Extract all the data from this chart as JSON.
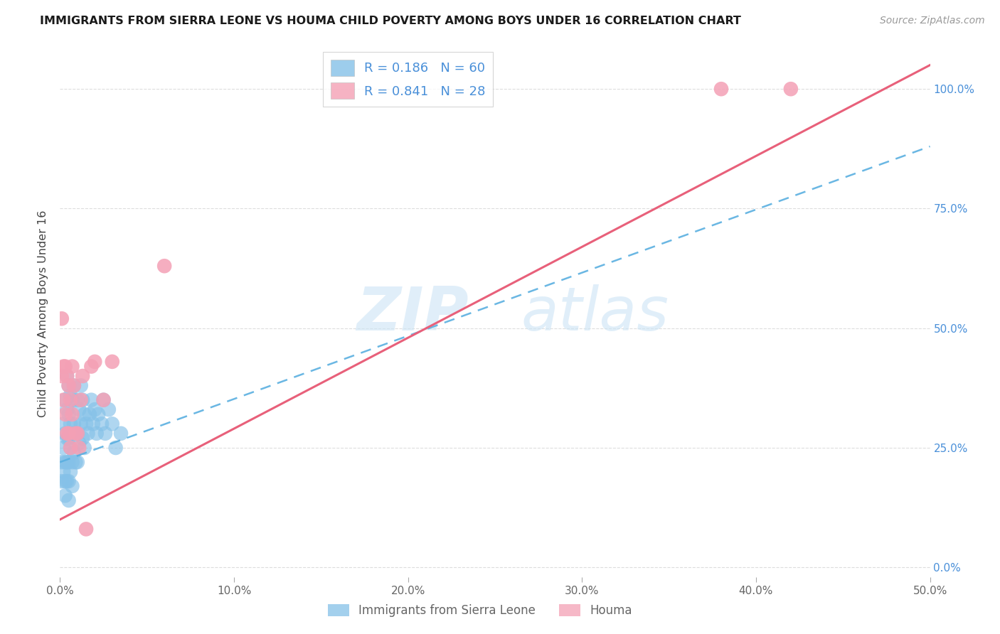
{
  "title": "IMMIGRANTS FROM SIERRA LEONE VS HOUMA CHILD POVERTY AMONG BOYS UNDER 16 CORRELATION CHART",
  "source": "Source: ZipAtlas.com",
  "ylabel": "Child Poverty Among Boys Under 16",
  "xlim": [
    0,
    0.5
  ],
  "ylim": [
    -0.02,
    1.08
  ],
  "xticks": [
    0.0,
    0.1,
    0.2,
    0.3,
    0.4,
    0.5
  ],
  "yticks": [
    0.0,
    0.25,
    0.5,
    0.75,
    1.0
  ],
  "xticklabels": [
    "0.0%",
    "10.0%",
    "20.0%",
    "30.0%",
    "40.0%",
    "50.0%"
  ],
  "yticklabels_right": [
    "0.0%",
    "25.0%",
    "50.0%",
    "75.0%",
    "100.0%"
  ],
  "legend_r1": "R = 0.186",
  "legend_n1": "N = 60",
  "legend_r2": "R = 0.841",
  "legend_n2": "N = 28",
  "color_blue": "#85c1e8",
  "color_pink": "#f4a0b5",
  "color_blue_line": "#5aafe0",
  "color_pink_line": "#e8607a",
  "color_blue_text": "#4a90d9",
  "watermark_zip": "ZIP",
  "watermark_atlas": "atlas",
  "blue_line_x0": 0.0,
  "blue_line_y0": 0.22,
  "blue_line_x1": 0.5,
  "blue_line_y1": 0.88,
  "pink_line_x0": 0.0,
  "pink_line_y0": 0.1,
  "pink_line_x1": 0.5,
  "pink_line_y1": 1.05,
  "sierra_leone_x": [
    0.001,
    0.001,
    0.002,
    0.002,
    0.002,
    0.003,
    0.003,
    0.003,
    0.003,
    0.003,
    0.004,
    0.004,
    0.004,
    0.004,
    0.004,
    0.005,
    0.005,
    0.005,
    0.005,
    0.005,
    0.005,
    0.006,
    0.006,
    0.006,
    0.006,
    0.007,
    0.007,
    0.007,
    0.007,
    0.008,
    0.008,
    0.008,
    0.009,
    0.009,
    0.01,
    0.01,
    0.01,
    0.011,
    0.011,
    0.012,
    0.012,
    0.013,
    0.013,
    0.014,
    0.014,
    0.015,
    0.016,
    0.017,
    0.018,
    0.019,
    0.02,
    0.021,
    0.022,
    0.024,
    0.025,
    0.026,
    0.028,
    0.03,
    0.032,
    0.035
  ],
  "sierra_leone_y": [
    0.22,
    0.18,
    0.3,
    0.25,
    0.2,
    0.35,
    0.28,
    0.22,
    0.18,
    0.15,
    0.4,
    0.33,
    0.27,
    0.22,
    0.18,
    0.38,
    0.32,
    0.27,
    0.22,
    0.18,
    0.14,
    0.36,
    0.3,
    0.25,
    0.2,
    0.35,
    0.28,
    0.22,
    0.17,
    0.38,
    0.3,
    0.24,
    0.28,
    0.22,
    0.35,
    0.28,
    0.22,
    0.33,
    0.26,
    0.38,
    0.3,
    0.35,
    0.27,
    0.32,
    0.25,
    0.3,
    0.28,
    0.32,
    0.35,
    0.3,
    0.33,
    0.28,
    0.32,
    0.3,
    0.35,
    0.28,
    0.33,
    0.3,
    0.25,
    0.28
  ],
  "houma_x": [
    0.001,
    0.001,
    0.002,
    0.002,
    0.003,
    0.003,
    0.004,
    0.004,
    0.005,
    0.005,
    0.006,
    0.006,
    0.007,
    0.007,
    0.008,
    0.009,
    0.01,
    0.011,
    0.012,
    0.013,
    0.015,
    0.018,
    0.02,
    0.025,
    0.03,
    0.06,
    0.38,
    0.42
  ],
  "houma_y": [
    0.52,
    0.4,
    0.42,
    0.35,
    0.42,
    0.32,
    0.4,
    0.28,
    0.38,
    0.28,
    0.35,
    0.25,
    0.42,
    0.32,
    0.38,
    0.28,
    0.28,
    0.25,
    0.35,
    0.4,
    0.08,
    0.42,
    0.43,
    0.35,
    0.43,
    0.63,
    1.0,
    1.0
  ],
  "background_color": "#ffffff",
  "grid_color": "#dddddd"
}
